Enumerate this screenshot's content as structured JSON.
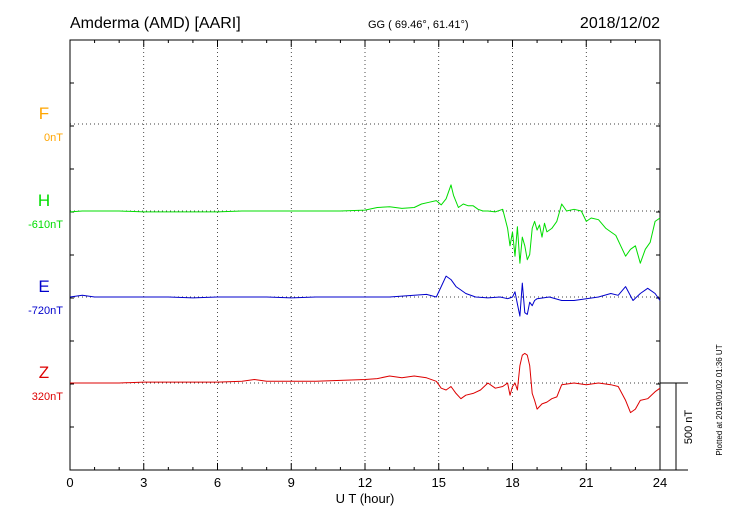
{
  "header": {
    "station": "Amderma (AMD)  [AARI]",
    "coords": "GG ( 69.46°,  61.41°)",
    "date": "2018/12/02"
  },
  "side_note": "Plotted at 2019/01/02 01:36 UT",
  "scale_label": "500 nT",
  "colors": {
    "F": "#ffa500",
    "H": "#00dd00",
    "E": "#0000cc",
    "Z": "#dd0000",
    "grid": "#000000"
  },
  "chart_data": {
    "type": "line",
    "xlabel": "U T (hour)",
    "xlim": [
      0,
      24
    ],
    "x_ticks": [
      "0",
      "3",
      "6",
      "9",
      "12",
      "15",
      "18",
      "21",
      "24"
    ],
    "scale_bar_nT": 500,
    "series": [
      {
        "name": "F",
        "baseline_label": "0nT",
        "color": "#ffa500",
        "x": [],
        "y": []
      },
      {
        "name": "H",
        "baseline_label": "-610nT",
        "color": "#00dd00",
        "x": [
          0,
          0.5,
          1,
          2,
          3,
          4,
          5,
          6,
          7,
          8,
          9,
          10,
          11,
          12,
          12.5,
          13,
          13.5,
          14,
          14.3,
          14.6,
          14.9,
          15.1,
          15.3,
          15.5,
          15.6,
          15.8,
          16,
          16.2,
          16.4,
          16.6,
          16.8,
          17,
          17.3,
          17.6,
          17.8,
          17.9,
          18,
          18.1,
          18.2,
          18.3,
          18.4,
          18.5,
          18.6,
          18.7,
          18.8,
          18.9,
          19,
          19.1,
          19.2,
          19.3,
          19.4,
          19.6,
          19.8,
          20,
          20.2,
          20.5,
          20.8,
          21,
          21.2,
          21.5,
          21.8,
          22,
          22.2,
          22.4,
          22.6,
          22.8,
          23,
          23.2,
          23.4,
          23.6,
          23.8,
          24
        ],
        "y": [
          -5,
          0,
          0,
          0,
          -5,
          -5,
          -5,
          -5,
          0,
          0,
          0,
          0,
          0,
          5,
          20,
          25,
          15,
          20,
          40,
          50,
          60,
          35,
          70,
          150,
          90,
          20,
          40,
          30,
          30,
          10,
          0,
          0,
          -5,
          10,
          -100,
          -200,
          -120,
          -260,
          -90,
          -300,
          -150,
          -200,
          -280,
          -250,
          -100,
          -60,
          -110,
          -80,
          -150,
          -70,
          -120,
          -100,
          -60,
          40,
          0,
          10,
          0,
          -60,
          -40,
          -50,
          -100,
          -120,
          -140,
          -200,
          -260,
          -220,
          -200,
          -300,
          -220,
          -180,
          -60,
          -40
        ]
      },
      {
        "name": "E",
        "baseline_label": "-720nT",
        "color": "#0000cc",
        "x": [
          0,
          0.5,
          1,
          2,
          3,
          4,
          5,
          6,
          7,
          8,
          9,
          10,
          11,
          12,
          13,
          13.5,
          14,
          14.5,
          14.9,
          15.1,
          15.3,
          15.5,
          15.7,
          15.9,
          16.1,
          16.5,
          17,
          17.5,
          17.8,
          18,
          18.1,
          18.2,
          18.3,
          18.4,
          18.5,
          18.6,
          18.7,
          18.8,
          18.9,
          19,
          19.5,
          20,
          20.5,
          21,
          21.5,
          22,
          22.3,
          22.6,
          22.9,
          23.2,
          23.5,
          23.8,
          24
        ],
        "y": [
          0,
          10,
          0,
          0,
          0,
          0,
          -5,
          0,
          0,
          0,
          -5,
          0,
          0,
          0,
          0,
          5,
          10,
          15,
          0,
          60,
          120,
          100,
          60,
          40,
          20,
          0,
          -5,
          0,
          -10,
          0,
          30,
          -40,
          -110,
          80,
          -90,
          -100,
          -30,
          -50,
          -20,
          -10,
          0,
          -20,
          -20,
          -10,
          0,
          20,
          10,
          60,
          -20,
          20,
          50,
          20,
          -20
        ]
      },
      {
        "name": "Z",
        "baseline_label": "320nT",
        "color": "#dd0000",
        "x": [
          0,
          1,
          2,
          3,
          4,
          5,
          6,
          7,
          7.5,
          8,
          9,
          10,
          11,
          12,
          12.5,
          13,
          13.5,
          14,
          14.5,
          14.9,
          15.1,
          15.3,
          15.5,
          15.7,
          15.9,
          16.1,
          16.4,
          16.7,
          17,
          17.3,
          17.6,
          17.8,
          17.9,
          18,
          18.1,
          18.2,
          18.3,
          18.4,
          18.5,
          18.6,
          18.7,
          18.8,
          18.9,
          19,
          19.2,
          19.4,
          19.6,
          19.8,
          20,
          20.5,
          21,
          21.5,
          22,
          22.3,
          22.6,
          22.8,
          23,
          23.2,
          23.5,
          23.8,
          24
        ],
        "y": [
          0,
          0,
          0,
          5,
          5,
          5,
          5,
          10,
          20,
          10,
          10,
          10,
          15,
          20,
          25,
          40,
          30,
          40,
          30,
          10,
          -30,
          -40,
          -20,
          -60,
          -90,
          -70,
          -60,
          -40,
          0,
          -30,
          -20,
          0,
          -70,
          -20,
          0,
          -40,
          100,
          160,
          170,
          160,
          100,
          -60,
          -100,
          -150,
          -120,
          -110,
          -90,
          -80,
          -10,
          0,
          -10,
          0,
          -10,
          -20,
          -100,
          -170,
          -150,
          -100,
          -90,
          -50,
          -30
        ]
      }
    ]
  }
}
